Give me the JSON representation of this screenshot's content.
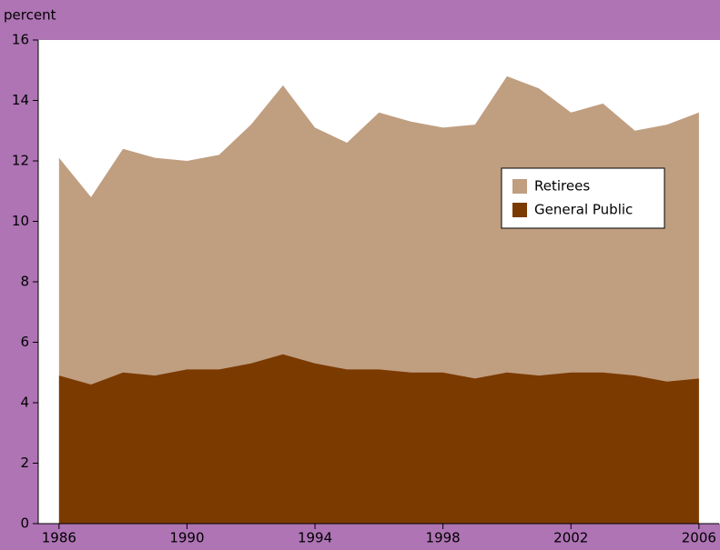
{
  "chart_data": {
    "type": "area",
    "y_label": "percent",
    "x": [
      1986,
      1987,
      1988,
      1989,
      1990,
      1991,
      1992,
      1993,
      1994,
      1995,
      1996,
      1997,
      1998,
      1999,
      2000,
      2001,
      2002,
      2003,
      2004,
      2005,
      2006
    ],
    "series": [
      {
        "name": "Retirees",
        "color": "#c09e80",
        "values": [
          12.1,
          10.8,
          12.4,
          12.1,
          12.0,
          12.2,
          13.2,
          14.5,
          13.1,
          12.6,
          13.6,
          13.3,
          13.1,
          13.2,
          14.8,
          14.4,
          13.6,
          13.9,
          13.0,
          13.2,
          13.6
        ]
      },
      {
        "name": "General Public",
        "color": "#7b3a00",
        "values": [
          4.9,
          4.6,
          5.0,
          4.9,
          5.1,
          5.1,
          5.3,
          5.6,
          5.3,
          5.1,
          5.1,
          5.0,
          5.0,
          4.8,
          5.0,
          4.9,
          5.0,
          5.0,
          4.9,
          4.7,
          4.8
        ]
      }
    ],
    "xlim": [
      1985.35,
      2006.63
    ],
    "xticks": [
      1986,
      1990,
      1994,
      1998,
      2002,
      2006
    ],
    "ylim": [
      0,
      16
    ],
    "yticks": [
      0,
      2,
      4,
      6,
      8,
      10,
      12,
      14,
      16
    ],
    "legend": "right"
  }
}
